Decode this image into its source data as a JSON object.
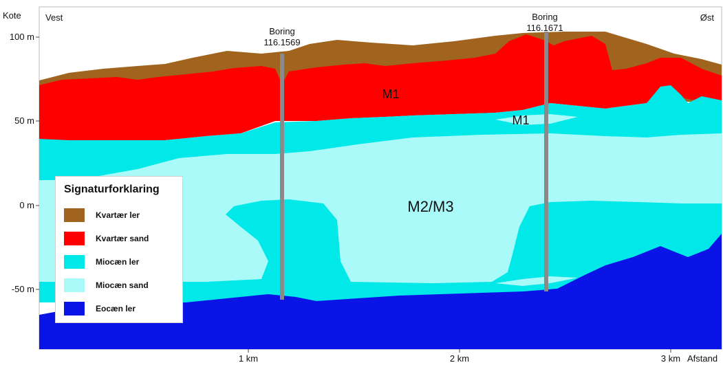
{
  "corners": {
    "top_left": "Kote",
    "west": "Vest",
    "east": "Øst"
  },
  "y_ticks": [
    "100 m",
    "50 m",
    "0 m",
    "-50 m"
  ],
  "x_ticks": [
    "1 km",
    "2 km",
    "3 km"
  ],
  "x_axis_label": "Afstand",
  "borings": [
    {
      "label": "Boring",
      "id": "116.1569"
    },
    {
      "label": "Boring",
      "id": "116.1671"
    }
  ],
  "units": {
    "m1_upper": "M1",
    "m1_lower": "M1",
    "m2m3": "M2/M3"
  },
  "legend": {
    "title": "Signaturforklaring",
    "items": [
      {
        "label": "Kvartær ler",
        "color": "#a0641e"
      },
      {
        "label": "Kvartær sand",
        "color": "#ff0000"
      },
      {
        "label": "Miocæn ler",
        "color": "#00e8e8"
      },
      {
        "label": "Miocæn sand",
        "color": "#aafafa"
      },
      {
        "label": "Eocæn ler",
        "color": "#0a14e6"
      }
    ]
  },
  "colors": {
    "kvartaer_ler": "#a0641e",
    "kvartaer_sand": "#ff0000",
    "miocaen_ler": "#00e8e8",
    "miocaen_sand": "#aafafa",
    "eocaen_ler": "#0a14e6",
    "boring": "#8a8a8a"
  }
}
